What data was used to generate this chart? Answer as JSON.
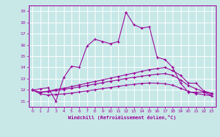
{
  "xlabel": "Windchill (Refroidissement éolien,°C)",
  "xlim": [
    -0.5,
    23.5
  ],
  "ylim": [
    10.5,
    19.5
  ],
  "yticks": [
    11,
    12,
    13,
    14,
    15,
    16,
    17,
    18,
    19
  ],
  "xticks": [
    0,
    1,
    2,
    3,
    4,
    5,
    6,
    7,
    8,
    9,
    10,
    11,
    12,
    13,
    14,
    15,
    16,
    17,
    18,
    19,
    20,
    21,
    22,
    23
  ],
  "bg_color": "#c8e8e8",
  "grid_color": "#ffffff",
  "line_color": "#990099",
  "lines": [
    {
      "x": [
        0,
        1,
        2,
        3,
        4,
        5,
        6,
        7,
        8,
        9,
        10,
        11,
        12,
        13,
        14,
        15,
        16,
        17,
        18,
        19,
        20,
        21,
        22,
        23
      ],
      "y": [
        12.0,
        12.1,
        12.2,
        11.0,
        13.1,
        14.1,
        14.0,
        15.9,
        16.5,
        16.3,
        16.1,
        16.3,
        18.9,
        17.8,
        17.5,
        17.6,
        14.9,
        14.7,
        14.0,
        12.6,
        11.8,
        11.8,
        11.8,
        11.5
      ]
    },
    {
      "x": [
        0,
        1,
        2,
        3,
        4,
        5,
        6,
        7,
        8,
        9,
        10,
        11,
        12,
        13,
        14,
        15,
        16,
        17,
        18,
        19,
        20,
        21,
        22,
        23
      ],
      "y": [
        12.0,
        11.8,
        11.9,
        12.05,
        12.15,
        12.3,
        12.45,
        12.6,
        12.75,
        12.9,
        13.05,
        13.2,
        13.35,
        13.5,
        13.65,
        13.8,
        13.9,
        14.0,
        13.7,
        13.3,
        12.6,
        12.6,
        11.9,
        11.7
      ]
    },
    {
      "x": [
        0,
        1,
        2,
        3,
        4,
        5,
        6,
        7,
        8,
        9,
        10,
        11,
        12,
        13,
        14,
        15,
        16,
        17,
        18,
        19,
        20,
        21,
        22,
        23
      ],
      "y": [
        12.0,
        11.8,
        11.85,
        11.95,
        12.05,
        12.15,
        12.28,
        12.4,
        12.52,
        12.65,
        12.78,
        12.9,
        13.02,
        13.12,
        13.22,
        13.32,
        13.4,
        13.45,
        13.3,
        12.9,
        12.4,
        12.1,
        11.85,
        11.65
      ]
    },
    {
      "x": [
        0,
        1,
        2,
        3,
        4,
        5,
        6,
        7,
        8,
        9,
        10,
        11,
        12,
        13,
        14,
        15,
        16,
        17,
        18,
        19,
        20,
        21,
        22,
        23
      ],
      "y": [
        12.0,
        11.65,
        11.55,
        11.6,
        11.65,
        11.72,
        11.82,
        11.92,
        12.02,
        12.12,
        12.22,
        12.32,
        12.42,
        12.5,
        12.58,
        12.62,
        12.6,
        12.55,
        12.42,
        12.15,
        11.88,
        11.68,
        11.58,
        11.48
      ]
    }
  ]
}
